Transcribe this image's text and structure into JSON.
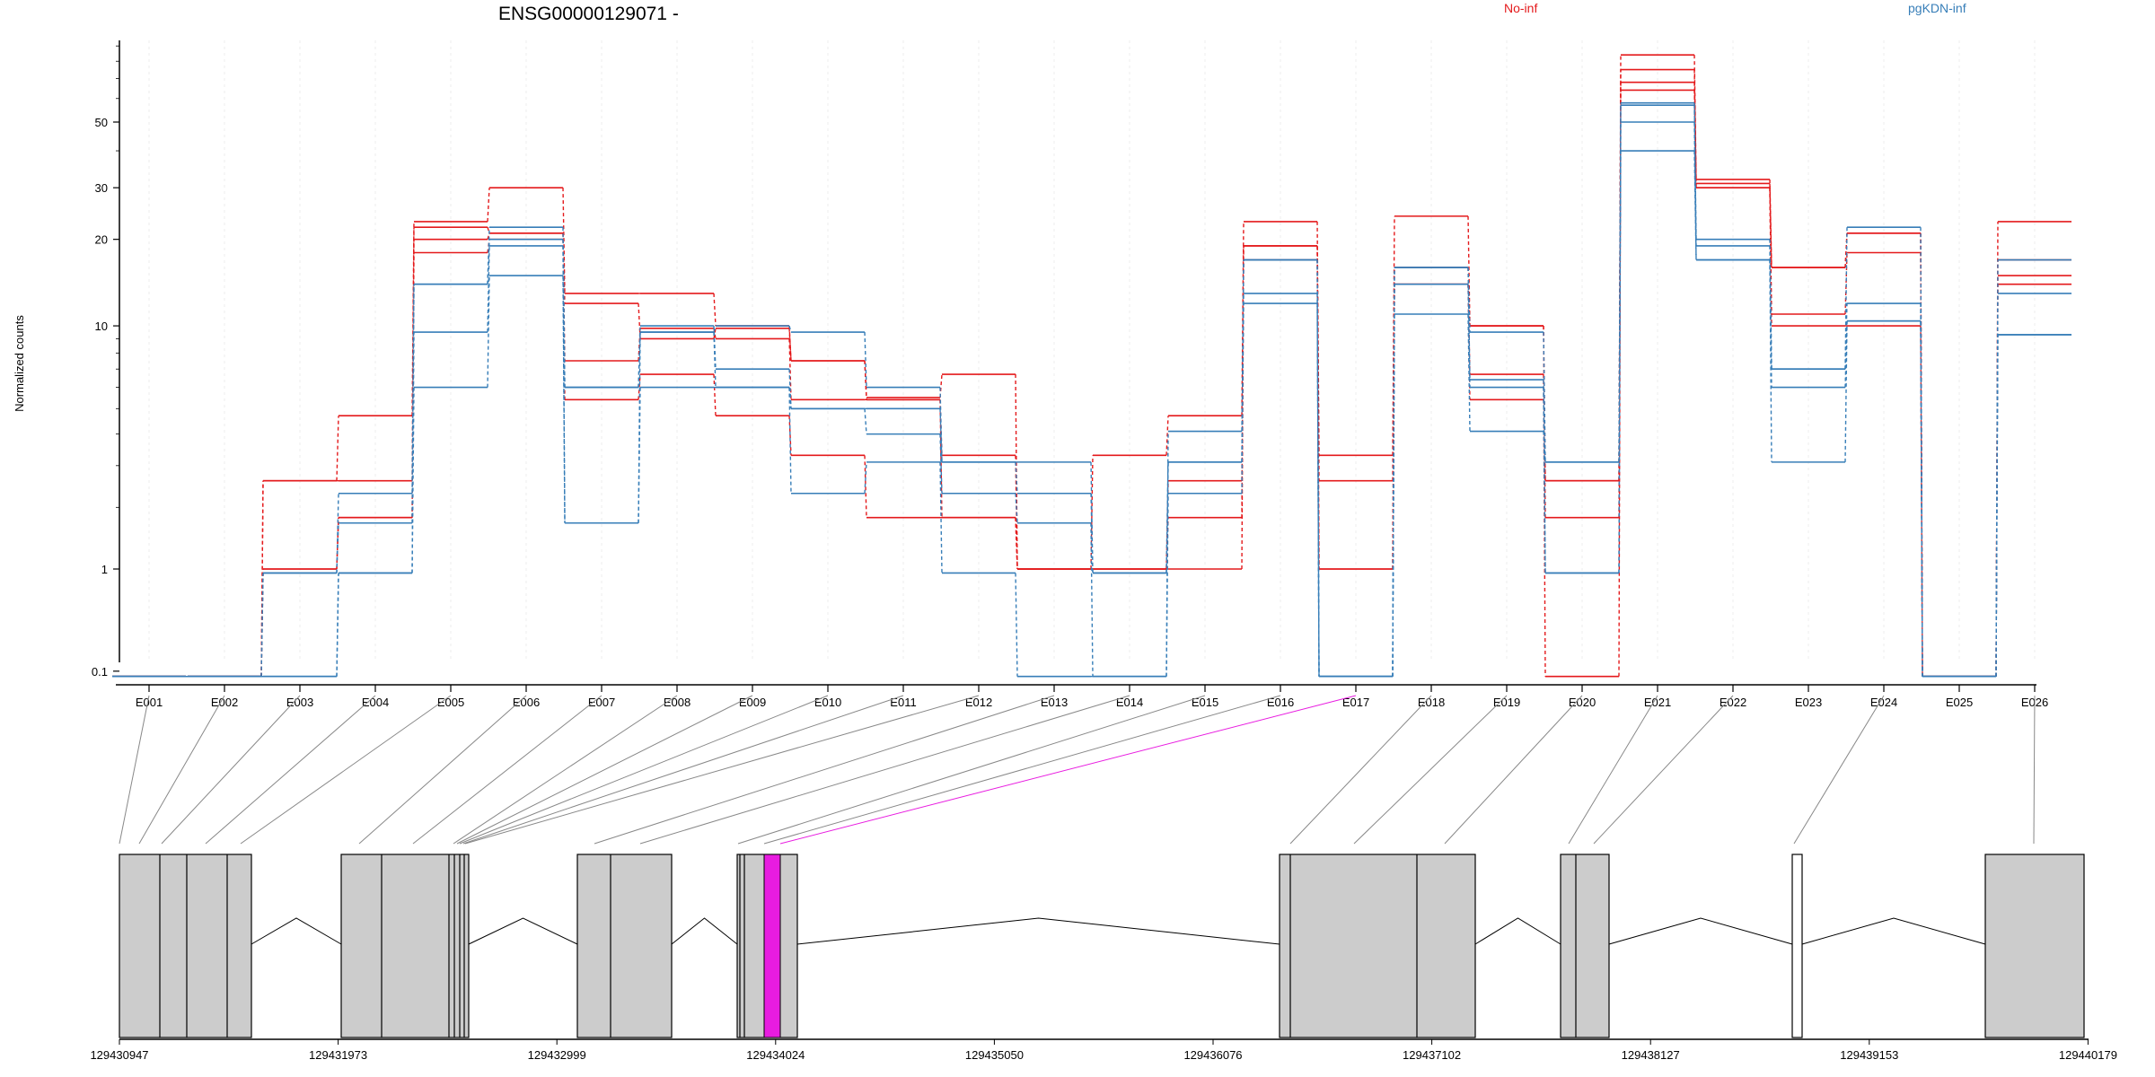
{
  "chart_data": {
    "type": "line",
    "title": "ENSG00000129071 -",
    "ylabel": "Normalized counts",
    "yscale": "log",
    "yticks": [
      0.1,
      1,
      10,
      20,
      30,
      50
    ],
    "categories": [
      "E001",
      "E002",
      "E003",
      "E004",
      "E005",
      "E006",
      "E007",
      "E008",
      "E009",
      "E010",
      "E011",
      "E012",
      "E013",
      "E014",
      "E015",
      "E016",
      "E017",
      "E018",
      "E019",
      "E020",
      "E021",
      "E022",
      "E023",
      "E024",
      "E025",
      "E026"
    ],
    "legend": [
      {
        "label": "No-inf",
        "color": "#e41a1c"
      },
      {
        "label": "pgKDN-inf",
        "color": "#377eb8"
      }
    ],
    "series": [
      {
        "group": "No-inf",
        "values": [
          0.07,
          0.07,
          2.6,
          4.7,
          23,
          30,
          13,
          13,
          10,
          7.5,
          5.5,
          6.7,
          1,
          3.3,
          4.7,
          23,
          3.3,
          24,
          10,
          2.6,
          84,
          32,
          16,
          21,
          0.07,
          23
        ]
      },
      {
        "group": "No-inf",
        "values": [
          0.07,
          0.07,
          2.6,
          2.6,
          22,
          21,
          12,
          9,
          9.8,
          7.5,
          5.4,
          3.3,
          1,
          1,
          2.6,
          19,
          2.6,
          16,
          10,
          1.8,
          75,
          31,
          16,
          21,
          0.07,
          17
        ]
      },
      {
        "group": "No-inf",
        "values": [
          0.07,
          0.07,
          1,
          1.8,
          20,
          21,
          7.5,
          9.8,
          9,
          5.4,
          5.4,
          1.8,
          1,
          1,
          1.8,
          19,
          1,
          14,
          6.7,
          0.07,
          68,
          30,
          11,
          18,
          0.07,
          15
        ]
      },
      {
        "group": "No-inf",
        "values": [
          0.07,
          0.07,
          1,
          1.8,
          18,
          20,
          5.4,
          6.7,
          4.7,
          3.3,
          1.8,
          1.8,
          1,
          1,
          1,
          17,
          1,
          14,
          5.4,
          2.6,
          64,
          30,
          10,
          10,
          0.07,
          14
        ]
      },
      {
        "group": "pgKDN-inf",
        "values": [
          0.07,
          0.07,
          0.95,
          2.3,
          14,
          22,
          6,
          9.5,
          10,
          9.5,
          6,
          3.1,
          3.1,
          0.95,
          3.1,
          17,
          0.07,
          16,
          9.5,
          3.1,
          58,
          20,
          7,
          22,
          0.07,
          17
        ]
      },
      {
        "group": "pgKDN-inf",
        "values": [
          0.07,
          0.07,
          0.95,
          1.7,
          14,
          20,
          6,
          10,
          7,
          5,
          5,
          3.1,
          2.3,
          0.95,
          3.1,
          17,
          0.07,
          16,
          6.4,
          0.95,
          57,
          19,
          7,
          12,
          0.07,
          13
        ]
      },
      {
        "group": "pgKDN-inf",
        "values": [
          0.07,
          0.07,
          0.07,
          0.95,
          9.5,
          19,
          1.7,
          9.5,
          6,
          5,
          4,
          2.3,
          1.7,
          0.07,
          2.3,
          13,
          0.07,
          14,
          6,
          0.95,
          50,
          17,
          6,
          10.4,
          0.07,
          9.3
        ]
      },
      {
        "group": "pgKDN-inf",
        "values": [
          0.07,
          0.07,
          0.07,
          0.95,
          6,
          15,
          1.7,
          6,
          6,
          2.3,
          3.1,
          0.95,
          0.07,
          0.07,
          4.1,
          12,
          0.07,
          11,
          4.1,
          3.1,
          40,
          17,
          3.1,
          10.4,
          0.07,
          9.3
        ]
      }
    ],
    "gene_model": {
      "coordinate_labels": [
        "129430947",
        "129431973",
        "129432999",
        "129434024",
        "129435050",
        "129436076",
        "129437102",
        "129438127",
        "129439153",
        "129440179"
      ],
      "highlighted_exon": "E017",
      "highlight_color": "#e81ce0",
      "exon_fill": "#cccccc"
    }
  }
}
